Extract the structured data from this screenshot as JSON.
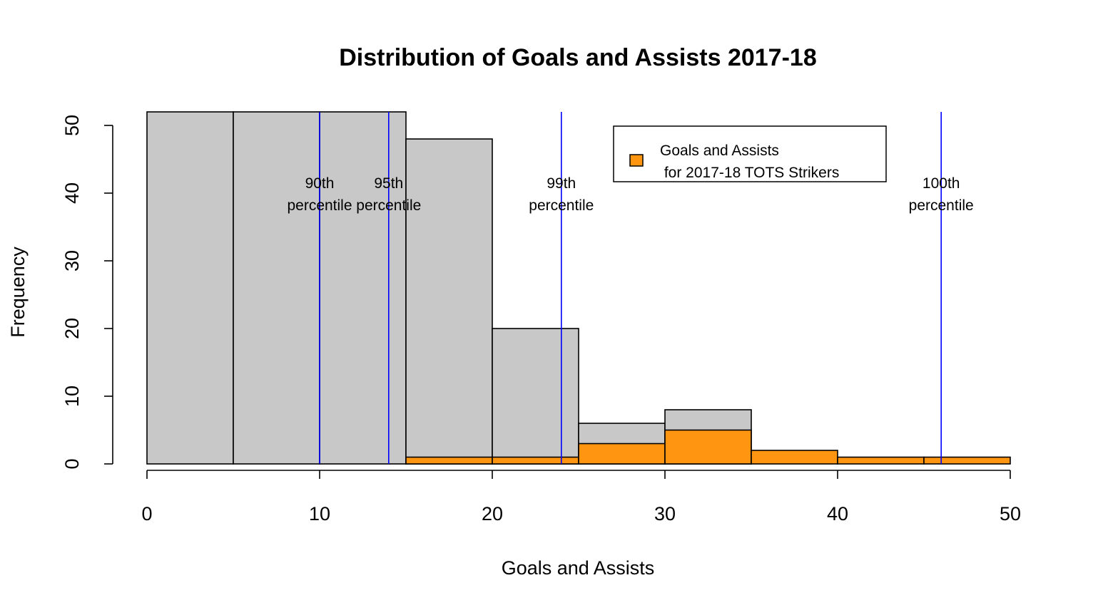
{
  "chart_data": {
    "type": "bar",
    "title": "Distribution of Goals and Assists 2017-18",
    "xlabel": "Goals and Assists",
    "ylabel": "Frequency",
    "xlim": [
      0,
      50
    ],
    "ylim": [
      0,
      52
    ],
    "x_ticks": [
      "0",
      "10",
      "20",
      "30",
      "40",
      "50"
    ],
    "y_ticks": [
      "0",
      "10",
      "20",
      "30",
      "40",
      "50"
    ],
    "bin_edges": [
      0,
      5,
      10,
      15,
      20,
      25,
      30,
      35,
      40,
      45,
      50
    ],
    "series": [
      {
        "values": [
          52,
          52,
          52,
          48,
          20,
          6,
          8,
          0,
          0,
          0
        ],
        "color": "#c8c8c8"
      },
      {
        "name": "Goals and Assists\n for 2017-18 TOTS Strikers",
        "values": [
          0,
          0,
          0,
          1,
          1,
          3,
          5,
          2,
          1,
          1
        ],
        "color": "#ff9510"
      }
    ],
    "reference_lines": [
      {
        "x": 10,
        "label_line1": "90th",
        "label_line2": "percentile",
        "color": "#0000ff"
      },
      {
        "x": 14,
        "label_line1": "95th",
        "label_line2": "percentile",
        "color": "#0000ff"
      },
      {
        "x": 24,
        "label_line1": "99th",
        "label_line2": "percentile",
        "color": "#0000ff"
      },
      {
        "x": 46,
        "label_line1": "100th",
        "label_line2": "percentile",
        "color": "#0000ff"
      }
    ],
    "legend": {
      "position": "top-right",
      "line1": "Goals and Assists",
      "line2": " for 2017-18 TOTS Strikers"
    },
    "grid": false
  }
}
